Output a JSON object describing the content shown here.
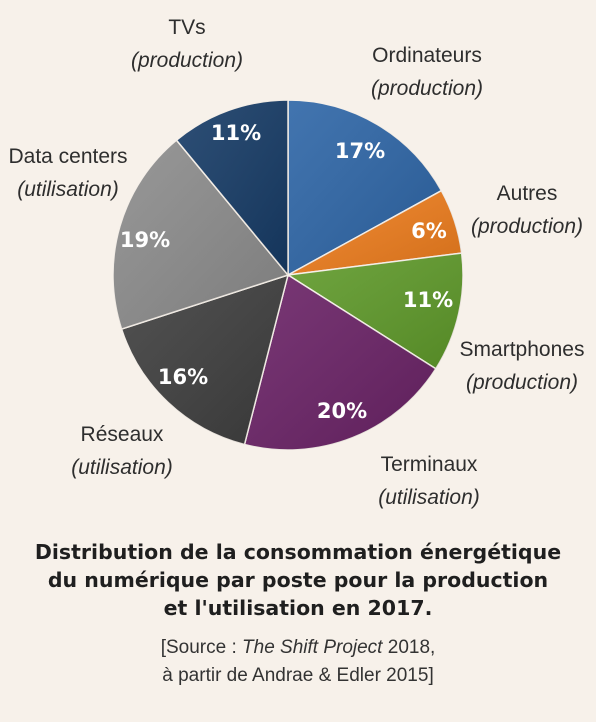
{
  "chart_data": {
    "type": "pie",
    "slices": [
      {
        "label": "Ordinateurs",
        "sublabel": "(production)",
        "value": 17,
        "value_label": "17%",
        "color": "#2d65a6"
      },
      {
        "label": "Autres",
        "sublabel": "(production)",
        "value": 6,
        "value_label": "6%",
        "color": "#ee7d1d"
      },
      {
        "label": "Smartphones",
        "sublabel": "(production)",
        "value": 11,
        "value_label": "11%",
        "color": "#5f9a2a"
      },
      {
        "label": "Terminaux",
        "sublabel": "(utilisation)",
        "value": 20,
        "value_label": "20%",
        "color": "#6a2266"
      },
      {
        "label": "Réseaux",
        "sublabel": "(utilisation)",
        "value": 16,
        "value_label": "16%",
        "color": "#3e3e3e"
      },
      {
        "label": "Data centers",
        "sublabel": "(utilisation)",
        "value": 19,
        "value_label": "19%",
        "color": "#8c8c8c"
      },
      {
        "label": "TVs",
        "sublabel": "(production)",
        "value": 11,
        "value_label": "11%",
        "color": "#163b66"
      }
    ],
    "start_angle": "12 o'clock",
    "direction": "clockwise",
    "title_lines": [
      "Distribution de la consommation énergétique",
      "du numérique par poste pour la production",
      "et l'utilisation en 2017."
    ]
  },
  "source": {
    "prefix": "[Source : ",
    "work": "The Shift Project",
    "line1_rest": " 2018,",
    "line2": "à partir de Andrae & Edler 2015]"
  }
}
